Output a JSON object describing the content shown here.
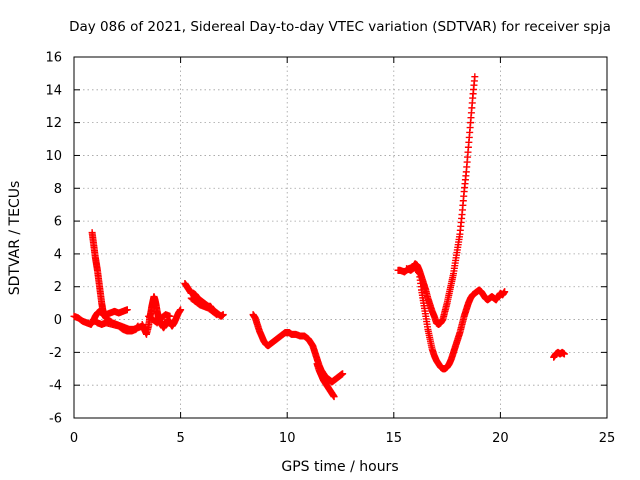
{
  "chart_data": {
    "type": "scatter",
    "title": "Day 086 of 2021, Sidereal Day-to-day VTEC variation (SDTVAR) for receiver spja",
    "xlabel": "GPS time / hours",
    "ylabel": "SDTVAR / TECUs",
    "xlim": [
      0,
      25
    ],
    "ylim": [
      -6,
      16
    ],
    "xticks": [
      "0",
      "5",
      "10",
      "15",
      "20",
      "25"
    ],
    "yticks": [
      "-6",
      "-4",
      "-2",
      "0",
      "2",
      "4",
      "6",
      "8",
      "10",
      "12",
      "14",
      "16"
    ],
    "grid": true,
    "marker": "+",
    "series": [
      {
        "name": "SDTVAR",
        "color": "#ff0000",
        "segments": [
          [
            [
              0.0,
              0.2
            ],
            [
              0.2,
              0.1
            ],
            [
              0.4,
              -0.1
            ],
            [
              0.6,
              -0.2
            ],
            [
              0.8,
              -0.3
            ],
            [
              0.9,
              -0.1
            ],
            [
              1.0,
              0.2
            ],
            [
              1.1,
              0.4
            ],
            [
              1.2,
              0.5
            ],
            [
              1.3,
              0.4
            ],
            [
              1.5,
              0.3
            ],
            [
              1.7,
              0.4
            ],
            [
              1.9,
              0.5
            ],
            [
              2.1,
              0.4
            ],
            [
              2.3,
              0.5
            ],
            [
              2.5,
              0.6
            ]
          ],
          [
            [
              0.85,
              5.3
            ],
            [
              0.9,
              4.8
            ],
            [
              0.95,
              4.3
            ],
            [
              1.0,
              3.8
            ],
            [
              1.05,
              3.4
            ],
            [
              1.1,
              3.0
            ],
            [
              1.15,
              2.5
            ],
            [
              1.2,
              2.0
            ],
            [
              1.25,
              1.5
            ],
            [
              1.3,
              1.0
            ],
            [
              1.35,
              0.6
            ],
            [
              1.4,
              0.3
            ],
            [
              1.5,
              0.1
            ],
            [
              1.6,
              0.0
            ],
            [
              1.8,
              -0.2
            ],
            [
              2.0,
              -0.3
            ],
            [
              2.2,
              -0.4
            ],
            [
              2.4,
              -0.5
            ],
            [
              2.6,
              -0.6
            ],
            [
              2.8,
              -0.6
            ],
            [
              3.0,
              -0.5
            ],
            [
              3.2,
              -0.4
            ]
          ],
          [
            [
              0.9,
              0.0
            ],
            [
              1.1,
              -0.2
            ],
            [
              1.3,
              -0.3
            ],
            [
              1.5,
              -0.2
            ],
            [
              1.8,
              -0.3
            ],
            [
              2.1,
              -0.4
            ],
            [
              2.3,
              -0.6
            ],
            [
              2.5,
              -0.7
            ],
            [
              2.7,
              -0.7
            ],
            [
              2.9,
              -0.6
            ],
            [
              3.0,
              -0.4
            ]
          ],
          [
            [
              3.2,
              -0.3
            ],
            [
              3.3,
              -0.6
            ],
            [
              3.4,
              -0.9
            ],
            [
              3.5,
              -0.4
            ],
            [
              3.55,
              0.1
            ],
            [
              3.6,
              0.4
            ],
            [
              3.65,
              0.8
            ],
            [
              3.7,
              1.1
            ],
            [
              3.75,
              1.4
            ],
            [
              3.8,
              1.2
            ],
            [
              3.85,
              0.9
            ],
            [
              3.9,
              0.5
            ],
            [
              3.95,
              0.2
            ],
            [
              4.0,
              0.0
            ],
            [
              4.1,
              -0.3
            ],
            [
              4.2,
              -0.5
            ],
            [
              4.3,
              -0.3
            ],
            [
              4.4,
              0.0
            ],
            [
              4.5,
              -0.2
            ],
            [
              4.6,
              -0.4
            ],
            [
              4.7,
              -0.2
            ],
            [
              4.8,
              0.1
            ],
            [
              4.9,
              0.4
            ],
            [
              5.0,
              0.6
            ]
          ],
          [
            [
              3.5,
              0.2
            ],
            [
              3.7,
              0.0
            ],
            [
              3.9,
              -0.2
            ],
            [
              4.1,
              0.1
            ],
            [
              4.3,
              0.3
            ],
            [
              4.5,
              0.2
            ]
          ],
          [
            [
              5.2,
              2.2
            ],
            [
              5.3,
              2.0
            ],
            [
              5.4,
              1.8
            ],
            [
              5.5,
              1.6
            ],
            [
              5.6,
              1.6
            ],
            [
              5.7,
              1.5
            ],
            [
              5.8,
              1.3
            ],
            [
              5.9,
              1.2
            ],
            [
              6.0,
              1.1
            ],
            [
              6.1,
              1.0
            ],
            [
              6.2,
              0.9
            ],
            [
              6.3,
              0.8
            ],
            [
              6.4,
              0.8
            ],
            [
              6.5,
              0.6
            ],
            [
              6.6,
              0.5
            ],
            [
              6.7,
              0.4
            ],
            [
              6.8,
              0.3
            ],
            [
              6.9,
              0.2
            ],
            [
              7.0,
              0.3
            ]
          ],
          [
            [
              5.5,
              1.3
            ],
            [
              5.7,
              1.1
            ],
            [
              5.9,
              0.9
            ],
            [
              6.1,
              0.8
            ],
            [
              6.3,
              0.7
            ],
            [
              6.5,
              0.5
            ],
            [
              6.7,
              0.3
            ]
          ],
          [
            [
              8.4,
              0.3
            ],
            [
              8.5,
              0.1
            ],
            [
              8.6,
              -0.3
            ],
            [
              8.7,
              -0.7
            ],
            [
              8.8,
              -1.0
            ],
            [
              8.9,
              -1.3
            ],
            [
              9.0,
              -1.5
            ],
            [
              9.1,
              -1.6
            ],
            [
              9.2,
              -1.5
            ],
            [
              9.3,
              -1.4
            ],
            [
              9.4,
              -1.3
            ],
            [
              9.5,
              -1.2
            ],
            [
              9.6,
              -1.1
            ],
            [
              9.7,
              -1.0
            ],
            [
              9.8,
              -0.9
            ],
            [
              9.9,
              -0.8
            ],
            [
              10.0,
              -0.8
            ],
            [
              10.1,
              -0.8
            ],
            [
              10.2,
              -0.9
            ],
            [
              10.4,
              -0.9
            ],
            [
              10.6,
              -1.0
            ],
            [
              10.8,
              -1.0
            ],
            [
              10.9,
              -1.1
            ],
            [
              11.0,
              -1.2
            ],
            [
              11.1,
              -1.4
            ],
            [
              11.2,
              -1.6
            ],
            [
              11.3,
              -2.0
            ],
            [
              11.4,
              -2.4
            ],
            [
              11.5,
              -2.8
            ],
            [
              11.6,
              -3.1
            ],
            [
              11.7,
              -3.3
            ],
            [
              11.8,
              -3.5
            ],
            [
              11.9,
              -3.6
            ],
            [
              12.0,
              -3.7
            ],
            [
              12.1,
              -3.8
            ],
            [
              12.2,
              -3.7
            ],
            [
              12.3,
              -3.6
            ],
            [
              12.4,
              -3.5
            ],
            [
              12.5,
              -3.4
            ],
            [
              12.6,
              -3.3
            ]
          ],
          [
            [
              11.4,
              -2.7
            ],
            [
              11.5,
              -3.1
            ],
            [
              11.6,
              -3.4
            ],
            [
              11.7,
              -3.7
            ],
            [
              11.8,
              -3.9
            ],
            [
              11.9,
              -4.1
            ],
            [
              12.0,
              -4.3
            ],
            [
              12.1,
              -4.5
            ],
            [
              12.2,
              -4.7
            ]
          ],
          [
            [
              15.2,
              3.0
            ],
            [
              15.3,
              3.0
            ],
            [
              15.5,
              2.9
            ],
            [
              15.7,
              3.1
            ],
            [
              15.9,
              3.2
            ],
            [
              16.0,
              3.4
            ],
            [
              16.1,
              3.3
            ],
            [
              16.2,
              3.0
            ],
            [
              16.3,
              2.6
            ],
            [
              16.4,
              2.2
            ],
            [
              16.5,
              1.8
            ],
            [
              16.6,
              1.3
            ],
            [
              16.7,
              0.9
            ],
            [
              16.8,
              0.5
            ],
            [
              16.9,
              0.2
            ],
            [
              17.0,
              -0.2
            ],
            [
              17.1,
              -0.3
            ],
            [
              17.2,
              -0.2
            ],
            [
              17.3,
              0.0
            ],
            [
              17.4,
              0.5
            ],
            [
              17.5,
              1.0
            ],
            [
              17.6,
              1.6
            ],
            [
              17.7,
              2.2
            ],
            [
              17.8,
              2.8
            ],
            [
              17.9,
              3.6
            ],
            [
              18.0,
              4.4
            ],
            [
              18.1,
              5.2
            ],
            [
              18.2,
              6.4
            ],
            [
              18.3,
              7.8
            ],
            [
              18.4,
              9.0
            ],
            [
              18.5,
              10.5
            ],
            [
              18.6,
              12.0
            ],
            [
              18.7,
              13.5
            ],
            [
              18.8,
              14.8
            ]
          ],
          [
            [
              15.6,
              3.1
            ],
            [
              15.8,
              3.0
            ],
            [
              16.0,
              3.2
            ],
            [
              16.2,
              2.8
            ],
            [
              16.3,
              1.8
            ],
            [
              16.4,
              1.0
            ],
            [
              16.5,
              0.2
            ],
            [
              16.6,
              -0.6
            ],
            [
              16.7,
              -1.2
            ],
            [
              16.8,
              -1.8
            ],
            [
              16.9,
              -2.2
            ],
            [
              17.0,
              -2.5
            ],
            [
              17.1,
              -2.7
            ],
            [
              17.2,
              -2.9
            ],
            [
              17.3,
              -3.0
            ],
            [
              17.4,
              -3.0
            ],
            [
              17.5,
              -2.9
            ],
            [
              17.6,
              -2.7
            ],
            [
              17.7,
              -2.4
            ],
            [
              17.8,
              -2.0
            ],
            [
              17.9,
              -1.6
            ],
            [
              18.0,
              -1.2
            ],
            [
              18.1,
              -0.8
            ],
            [
              18.2,
              -0.3
            ],
            [
              18.3,
              0.2
            ],
            [
              18.4,
              0.6
            ],
            [
              18.5,
              1.0
            ],
            [
              18.6,
              1.3
            ],
            [
              18.7,
              1.5
            ],
            [
              18.8,
              1.6
            ],
            [
              18.9,
              1.7
            ],
            [
              19.0,
              1.8
            ],
            [
              19.1,
              1.7
            ],
            [
              19.2,
              1.5
            ],
            [
              19.3,
              1.3
            ],
            [
              19.4,
              1.2
            ],
            [
              19.5,
              1.3
            ],
            [
              19.6,
              1.4
            ],
            [
              19.7,
              1.3
            ],
            [
              19.8,
              1.2
            ],
            [
              19.9,
              1.4
            ],
            [
              20.0,
              1.6
            ],
            [
              20.1,
              1.5
            ],
            [
              20.2,
              1.7
            ]
          ],
          [
            [
              22.5,
              -2.3
            ],
            [
              22.6,
              -2.1
            ],
            [
              22.7,
              -2.0
            ],
            [
              22.8,
              -2.1
            ],
            [
              22.9,
              -2.0
            ],
            [
              23.0,
              -2.1
            ]
          ]
        ]
      }
    ]
  }
}
